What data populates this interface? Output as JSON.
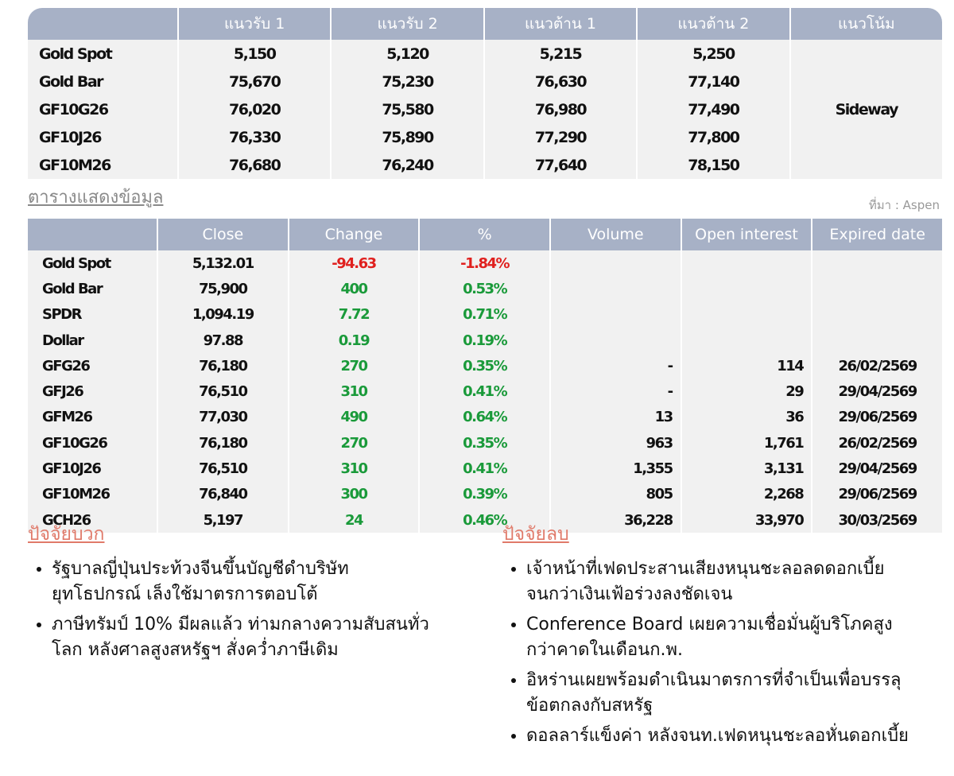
{
  "table1": {
    "header": [
      "แนวรับ 1",
      "แนวรับ 2",
      "แนวต้าน 1",
      "แนวต้าน 2",
      "แนวโน้ม"
    ],
    "rows": [
      [
        "Gold Spot",
        "5,150",
        "5,120",
        "5,215",
        "5,250"
      ],
      [
        "Gold Bar",
        "75,670",
        "75,230",
        "76,630",
        "77,140"
      ],
      [
        "GF10G26",
        "76,020",
        "75,580",
        "76,980",
        "77,490"
      ],
      [
        "GF10J26",
        "76,330",
        "75,890",
        "77,290",
        "77,800"
      ],
      [
        "GF10M26",
        "76,680",
        "76,240",
        "77,640",
        "78,150"
      ]
    ],
    "trend": "Sideway"
  },
  "section_title": "ตารางแสดงข้อมูล",
  "source": "ที่มา : Aspen",
  "table2": {
    "header": [
      "Close",
      "Change",
      "%",
      "Volume",
      "Open interest",
      "Expired date"
    ],
    "rows": [
      [
        "Gold Spot",
        "5,132.01",
        "-94.63",
        "-1.84%"
      ],
      [
        "Gold Bar",
        "75,900",
        "400",
        "0.53%"
      ],
      [
        "SPDR",
        "1,094.19",
        "7.72",
        "0.71%"
      ],
      [
        "Dollar",
        "97.88",
        "0.19",
        "0.19%"
      ],
      [
        "GFG26",
        "76,180",
        "270",
        "0.35%",
        "-",
        "114",
        "26/02/2569"
      ],
      [
        "GFJ26",
        "76,510",
        "310",
        "0.41%",
        "-",
        "29",
        "29/04/2569"
      ],
      [
        "GFM26",
        "77,030",
        "490",
        "0.64%",
        "13",
        "36",
        "29/06/2569"
      ],
      [
        "GF10G26",
        "76,180",
        "270",
        "0.35%",
        "963",
        "1,761",
        "26/02/2569"
      ],
      [
        "GF10J26",
        "76,510",
        "310",
        "0.41%",
        "1,355",
        "3,131",
        "29/04/2569"
      ],
      [
        "GF10M26",
        "76,840",
        "300",
        "0.39%",
        "805",
        "2,268",
        "29/06/2569"
      ],
      [
        "GCH26",
        "5,197",
        "24",
        "0.46%",
        "36,228",
        "33,970",
        "30/03/2569"
      ]
    ]
  },
  "positive": {
    "title": "ปัจจัยบวก",
    "items": [
      "รัฐบาลญี่ปุ่นประท้วงจีนขึ้นบัญชีดำบริษัท ยุทโธปกรณ์ เล็งใช้มาตรการตอบโต้",
      "ภาษีทรัมป์ 10% มีผลแล้ว ท่ามกลางความสับสนทั่วโลก หลังศาลสูงสหรัฐฯ สั่งคว่ำภาษีเดิม"
    ]
  },
  "negative": {
    "title": "ปัจจัยลบ",
    "items": [
      "เจ้าหน้าที่เฟดประสานเสียงหนุนชะลอลดดอกเบี้ย จนกว่าเงินเฟ้อร่วงลงชัดเจน",
      "Conference Board เผยความเชื่อมั่นผู้บริโภคสูงกว่าคาดในเดือนก.พ.",
      "อิหร่านเผยพร้อมดำเนินมาตรการที่จำเป็นเพื่อบรรลุข้อตกลงกับสหรัฐ",
      "ดอลลาร์แข็งค่า หลังจนท.เฟดหนุนชะลอหั่นดอกเบี้ย"
    ]
  }
}
